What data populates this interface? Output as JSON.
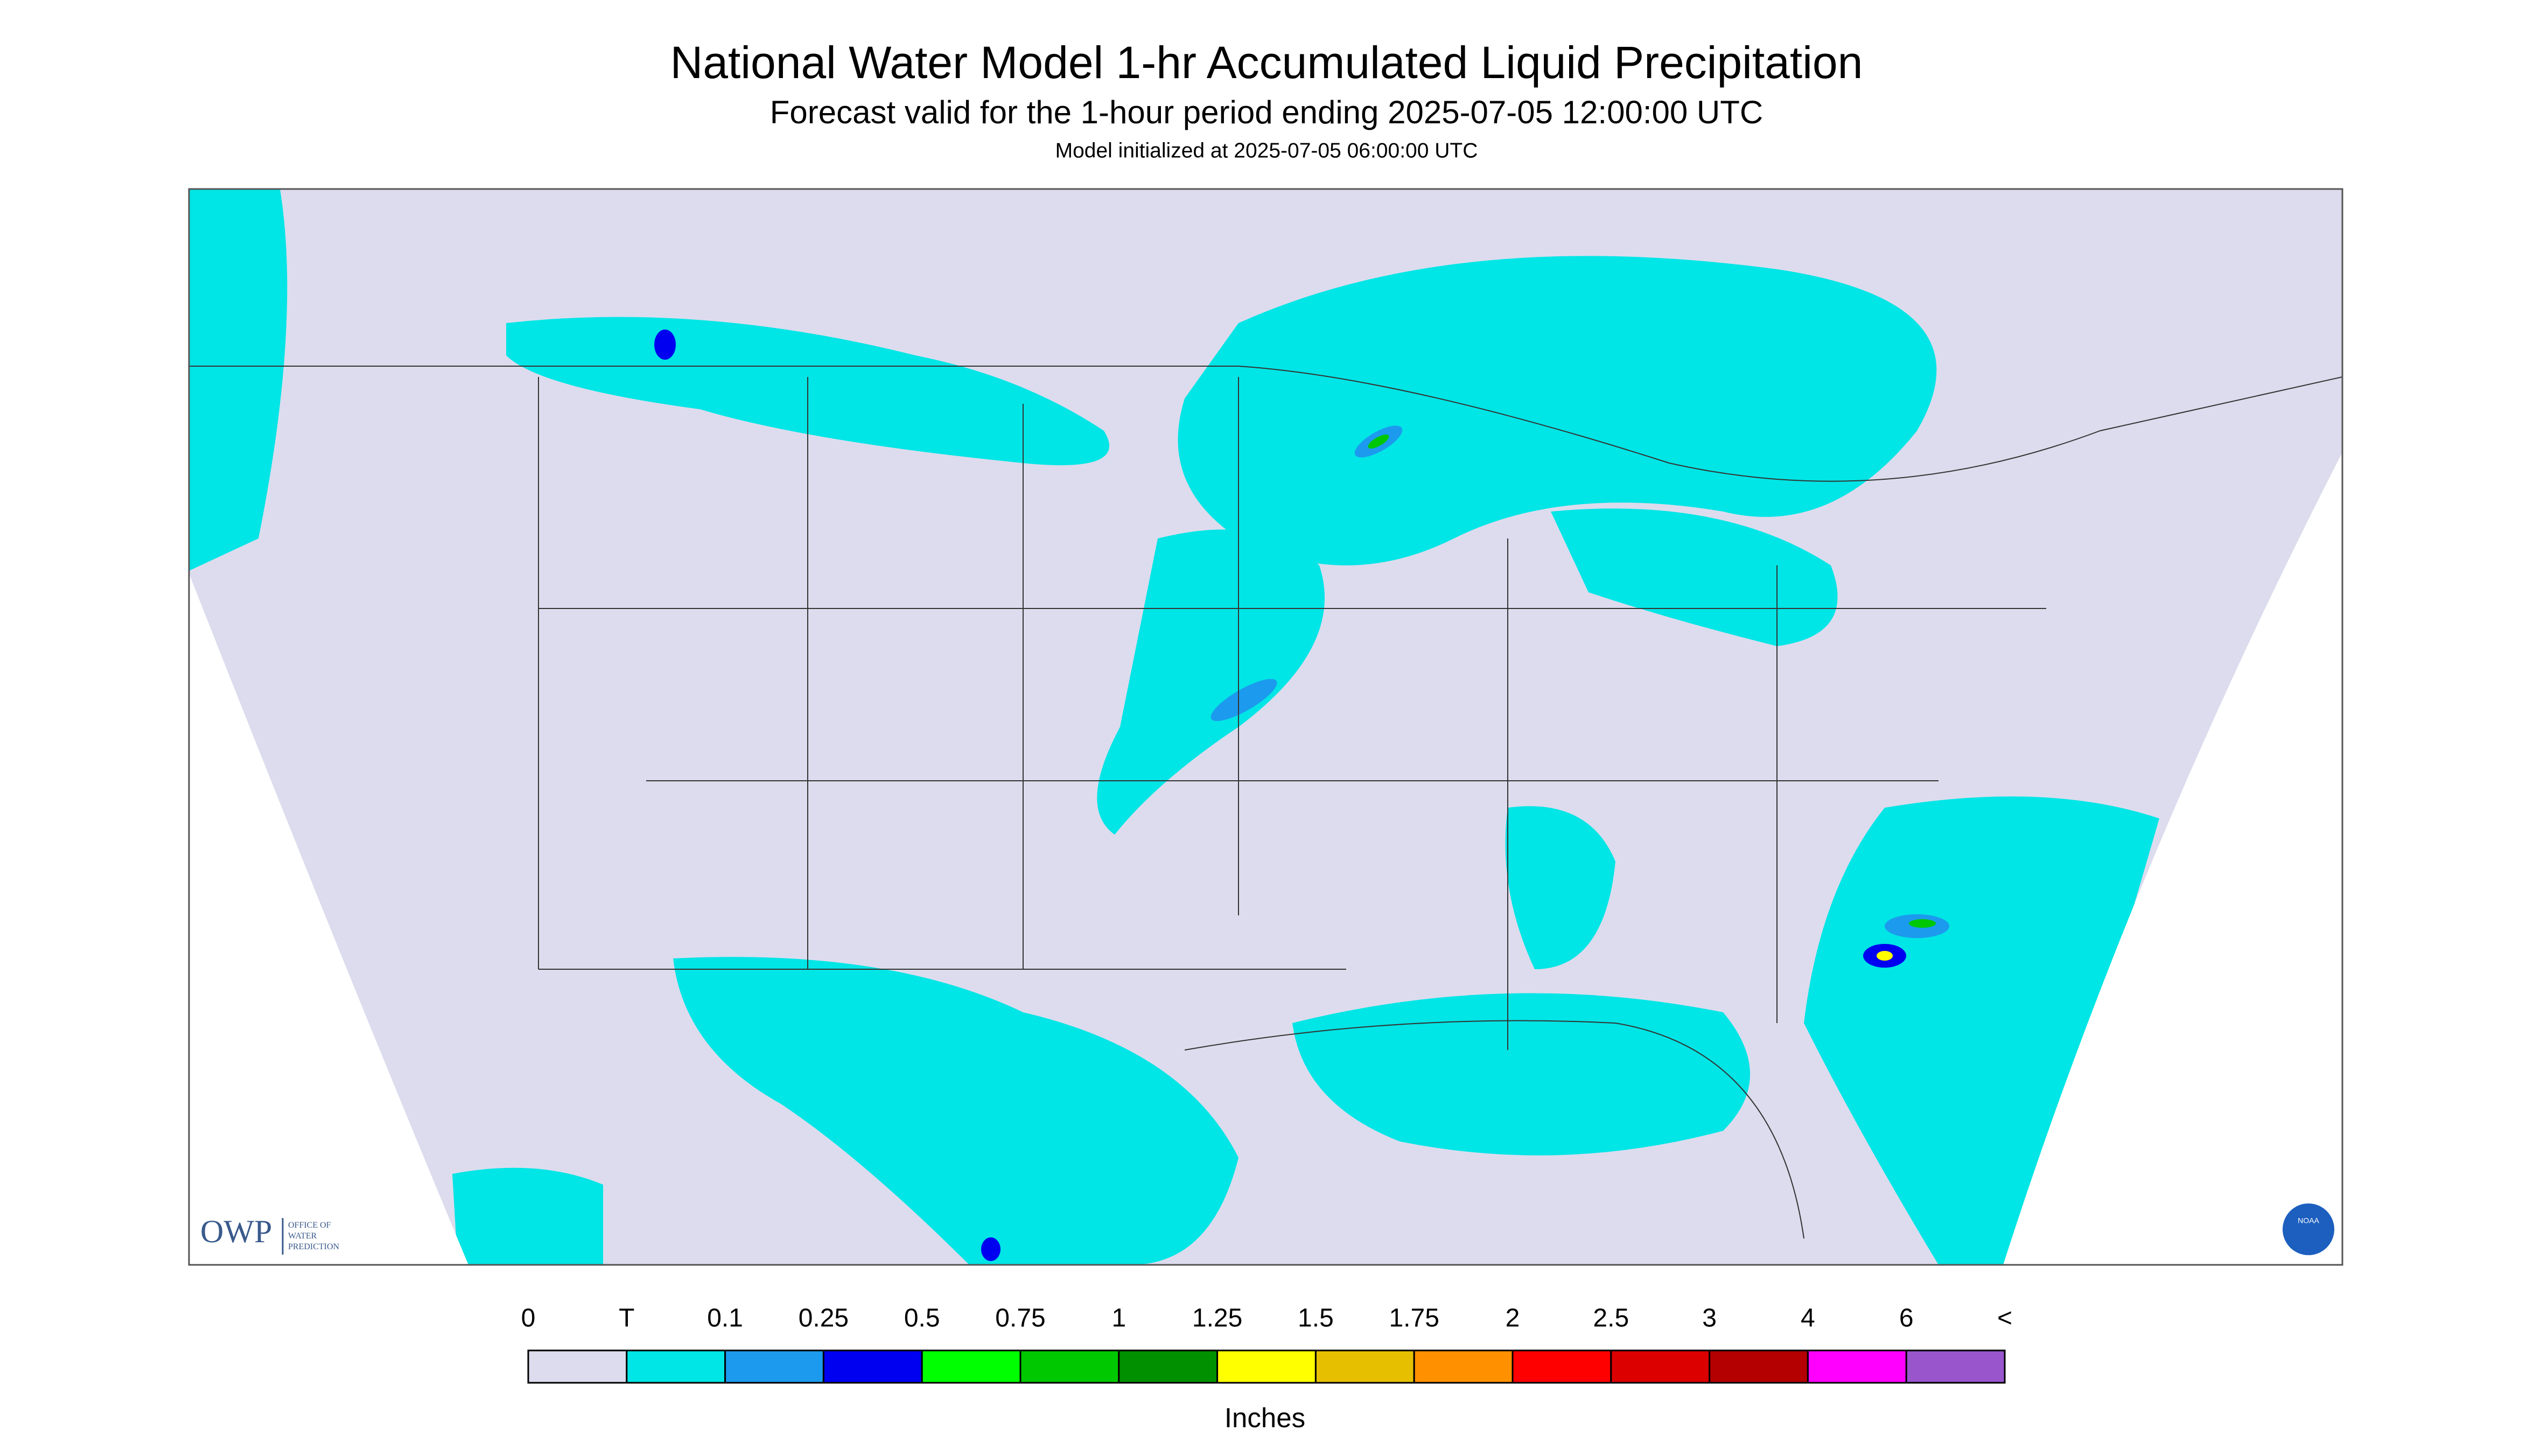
{
  "header": {
    "title": "National Water Model 1-hr Accumulated Liquid Precipitation",
    "subtitle": "Forecast valid for the 1-hour period ending 2025-07-05 12:00:00 UTC",
    "init": "Model initialized at 2025-07-05 06:00:00 UTC"
  },
  "logos": {
    "owp": "OWP",
    "owp_lines": [
      "OFFICE OF",
      "WATER",
      "PREDICTION"
    ],
    "noaa": "NOAA"
  },
  "legend": {
    "labels": [
      "0",
      "T",
      "0.1",
      "0.25",
      "0.5",
      "0.75",
      "1",
      "1.25",
      "1.5",
      "1.75",
      "2",
      "2.5",
      "3",
      "4",
      "6",
      "<"
    ],
    "colors": [
      "#dcdcee",
      "#00e5e5",
      "#1c9aee",
      "#0000f0",
      "#00ff00",
      "#00c800",
      "#009000",
      "#ffff00",
      "#e6c000",
      "#ff9000",
      "#ff0000",
      "#dc0000",
      "#b40000",
      "#ff00ff",
      "#9955cc"
    ],
    "units": "Inches"
  }
}
